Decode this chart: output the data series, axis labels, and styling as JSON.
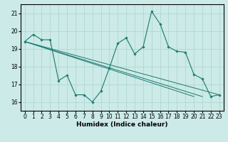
{
  "xlabel": "Humidex (Indice chaleur)",
  "ylabel": "",
  "xlim": [
    -0.5,
    23.5
  ],
  "ylim": [
    15.5,
    21.5
  ],
  "yticks": [
    16,
    17,
    18,
    19,
    20,
    21
  ],
  "xticks": [
    0,
    1,
    2,
    3,
    4,
    5,
    6,
    7,
    8,
    9,
    10,
    11,
    12,
    13,
    14,
    15,
    16,
    17,
    18,
    19,
    20,
    21,
    22,
    23
  ],
  "bg_color": "#cceae7",
  "grid_color": "#aad4d0",
  "line_color": "#1a7a6e",
  "series0": {
    "x": [
      0,
      1,
      2,
      3,
      4,
      5,
      6,
      7,
      8,
      9,
      10,
      11,
      12,
      13,
      14,
      15,
      16,
      17,
      18,
      19,
      20,
      21,
      22,
      23
    ],
    "y": [
      19.4,
      19.8,
      19.5,
      19.5,
      17.2,
      17.5,
      16.4,
      16.4,
      16.0,
      16.6,
      17.9,
      19.3,
      19.6,
      18.7,
      19.1,
      21.1,
      20.4,
      19.1,
      18.85,
      18.8,
      17.55,
      17.3,
      16.3,
      16.4
    ]
  },
  "series1": {
    "x": [
      0,
      3,
      20
    ],
    "y": [
      19.4,
      19.5,
      16.3
    ]
  },
  "series2": {
    "x": [
      0,
      3,
      21
    ],
    "y": [
      19.4,
      19.5,
      16.3
    ]
  },
  "series3": {
    "x": [
      0,
      3,
      22,
      23
    ],
    "y": [
      19.4,
      19.5,
      16.3,
      16.4
    ]
  }
}
